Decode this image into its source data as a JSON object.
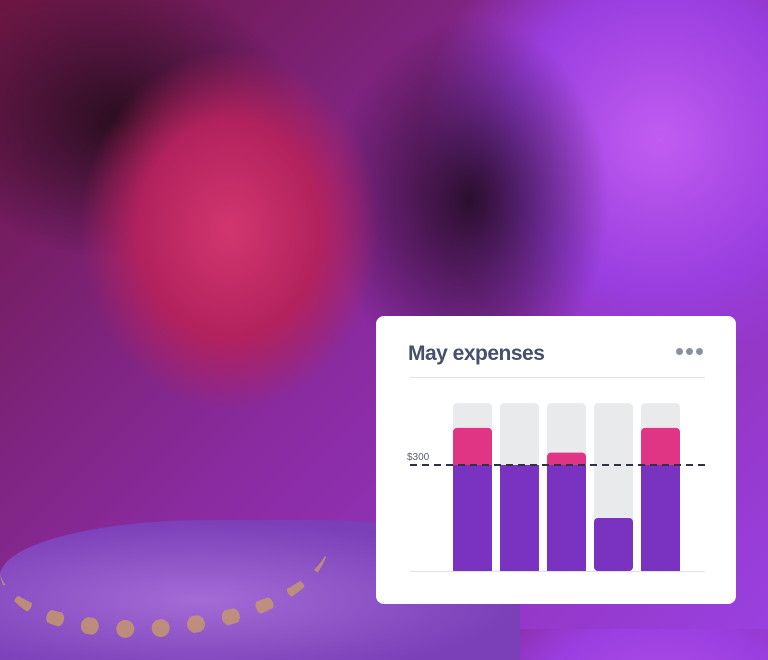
{
  "card": {
    "title": "May expenses",
    "menu_icon": "more-horizontal-icon"
  },
  "chart_data": {
    "type": "bar",
    "title": "May expenses",
    "categories": [
      "",
      "",
      "",
      "",
      ""
    ],
    "series": [
      {
        "values": [
          405,
          300,
          335,
          150,
          405
        ]
      }
    ],
    "budget_capacity": 475,
    "reference_line": {
      "value": 300,
      "label": "$300",
      "style": "dashed"
    },
    "ylim": [
      0,
      480
    ],
    "grid": false,
    "colors": {
      "within_budget": "#7a33c0",
      "over_budget": "#e03585",
      "track": "#e9eaeb",
      "reference": "#2f3240"
    }
  }
}
